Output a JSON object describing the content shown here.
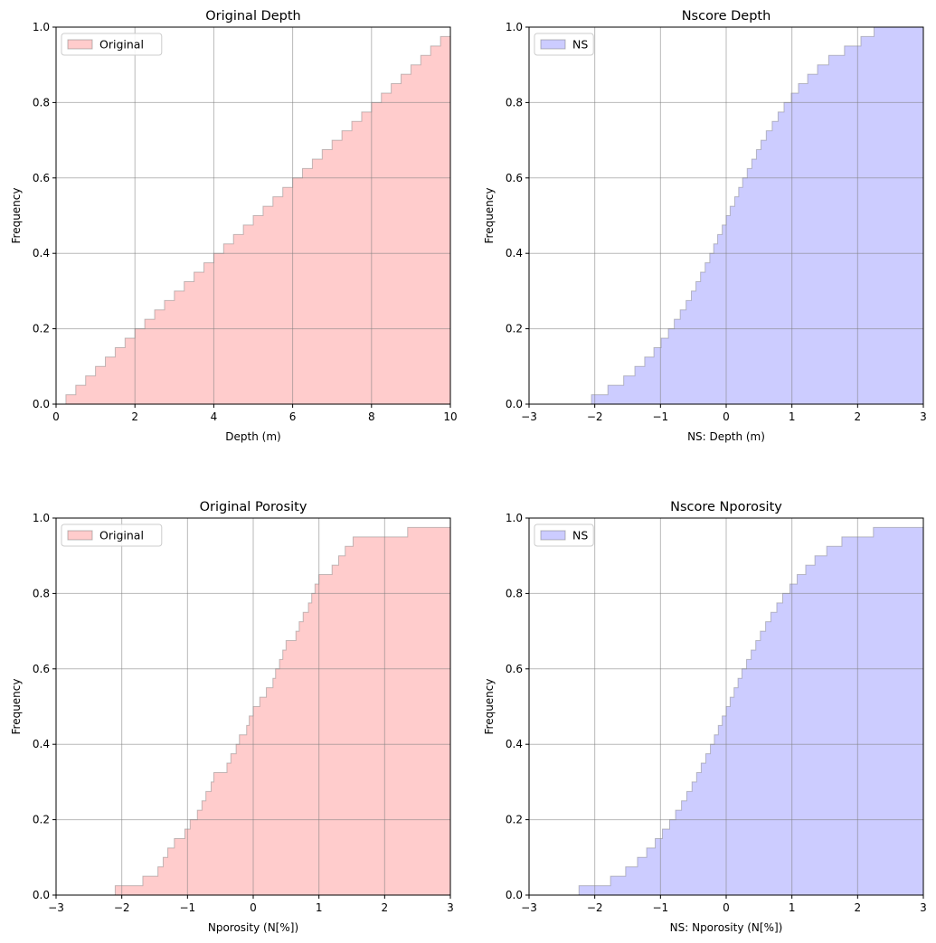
{
  "chart_data": [
    {
      "type": "area",
      "title": "Original Depth",
      "xlabel": "Depth (m)",
      "ylabel": "Frequency",
      "xlim": [
        0,
        10
      ],
      "ylim": [
        0,
        1
      ],
      "xticks": [
        0,
        2,
        4,
        6,
        8,
        10
      ],
      "yticks": [
        0.0,
        0.2,
        0.4,
        0.6,
        0.8,
        1.0
      ],
      "xtick_labels": [
        "0",
        "2",
        "4",
        "6",
        "8",
        "10"
      ],
      "ytick_labels": [
        "0.0",
        "0.2",
        "0.4",
        "0.6",
        "0.8",
        "1.0"
      ],
      "grid": true,
      "legend_position": "top-left",
      "series": [
        {
          "name": "Original",
          "color": "#ff9999",
          "x": [
            0.25,
            0.5,
            0.75,
            1.0,
            1.25,
            1.5,
            1.75,
            2.0,
            2.25,
            2.5,
            2.75,
            3.0,
            3.25,
            3.5,
            3.75,
            4.0,
            4.25,
            4.5,
            4.75,
            5.0,
            5.25,
            5.5,
            5.75,
            6.0,
            6.25,
            6.5,
            6.75,
            7.0,
            7.25,
            7.5,
            7.75,
            8.0,
            8.25,
            8.5,
            8.75,
            9.0,
            9.25,
            9.5,
            9.75,
            10.0
          ],
          "y": [
            0.025,
            0.05,
            0.075,
            0.1,
            0.125,
            0.15,
            0.175,
            0.2,
            0.225,
            0.25,
            0.275,
            0.3,
            0.325,
            0.35,
            0.375,
            0.4,
            0.425,
            0.45,
            0.475,
            0.5,
            0.525,
            0.55,
            0.575,
            0.6,
            0.625,
            0.65,
            0.675,
            0.7,
            0.725,
            0.75,
            0.775,
            0.8,
            0.825,
            0.85,
            0.875,
            0.9,
            0.925,
            0.95,
            0.975,
            1.0
          ]
        }
      ]
    },
    {
      "type": "area",
      "title": "Nscore Depth",
      "xlabel": "NS: Depth (m)",
      "ylabel": "Frequency",
      "xlim": [
        -3,
        3
      ],
      "ylim": [
        0,
        1
      ],
      "xticks": [
        -3,
        -2,
        -1,
        0,
        1,
        2,
        3
      ],
      "yticks": [
        0.0,
        0.2,
        0.4,
        0.6,
        0.8,
        1.0
      ],
      "xtick_labels": [
        "−3",
        "−2",
        "−1",
        "0",
        "1",
        "2",
        "3"
      ],
      "ytick_labels": [
        "0.0",
        "0.2",
        "0.4",
        "0.6",
        "0.8",
        "1.0"
      ],
      "grid": true,
      "legend_position": "top-left",
      "series": [
        {
          "name": "NS",
          "color": "#9999ff",
          "x": [
            -2.05,
            -1.8,
            -1.56,
            -1.39,
            -1.24,
            -1.1,
            -0.99,
            -0.88,
            -0.79,
            -0.7,
            -0.61,
            -0.53,
            -0.46,
            -0.39,
            -0.32,
            -0.25,
            -0.19,
            -0.13,
            -0.06,
            0.0,
            0.06,
            0.13,
            0.19,
            0.25,
            0.32,
            0.39,
            0.46,
            0.53,
            0.61,
            0.7,
            0.79,
            0.88,
            0.99,
            1.1,
            1.24,
            1.39,
            1.56,
            1.8,
            2.05,
            2.25
          ],
          "y": [
            0.025,
            0.05,
            0.075,
            0.1,
            0.125,
            0.15,
            0.175,
            0.2,
            0.225,
            0.25,
            0.275,
            0.3,
            0.325,
            0.35,
            0.375,
            0.4,
            0.425,
            0.45,
            0.475,
            0.5,
            0.525,
            0.55,
            0.575,
            0.6,
            0.625,
            0.65,
            0.675,
            0.7,
            0.725,
            0.75,
            0.775,
            0.8,
            0.825,
            0.85,
            0.875,
            0.9,
            0.925,
            0.95,
            0.975,
            1.0
          ]
        }
      ]
    },
    {
      "type": "area",
      "title": "Original Porosity",
      "xlabel": "Nporosity (N[%])",
      "ylabel": "Frequency",
      "xlim": [
        -3,
        3
      ],
      "ylim": [
        0,
        1
      ],
      "xticks": [
        -3,
        -2,
        -1,
        0,
        1,
        2,
        3
      ],
      "yticks": [
        0.0,
        0.2,
        0.4,
        0.6,
        0.8,
        1.0
      ],
      "xtick_labels": [
        "−3",
        "−2",
        "−1",
        "0",
        "1",
        "2",
        "3"
      ],
      "ytick_labels": [
        "0.0",
        "0.2",
        "0.4",
        "0.6",
        "0.8",
        "1.0"
      ],
      "grid": true,
      "legend_position": "top-left",
      "series": [
        {
          "name": "Original",
          "color": "#ff9999",
          "x": [
            -2.1,
            -1.68,
            -1.45,
            -1.37,
            -1.3,
            -1.2,
            -1.04,
            -0.96,
            -0.85,
            -0.78,
            -0.72,
            -0.64,
            -0.6,
            -0.4,
            -0.34,
            -0.26,
            -0.21,
            -0.1,
            -0.06,
            0.0,
            0.1,
            0.2,
            0.3,
            0.34,
            0.4,
            0.45,
            0.5,
            0.65,
            0.7,
            0.76,
            0.84,
            0.89,
            0.94,
            1.0,
            1.2,
            1.3,
            1.4,
            1.52,
            2.35,
            3.0
          ],
          "y": [
            0.025,
            0.05,
            0.075,
            0.1,
            0.125,
            0.15,
            0.175,
            0.2,
            0.225,
            0.25,
            0.275,
            0.3,
            0.325,
            0.35,
            0.375,
            0.4,
            0.425,
            0.45,
            0.475,
            0.5,
            0.525,
            0.55,
            0.575,
            0.6,
            0.625,
            0.65,
            0.675,
            0.7,
            0.725,
            0.75,
            0.775,
            0.8,
            0.825,
            0.85,
            0.875,
            0.9,
            0.925,
            0.95,
            0.975,
            1.0
          ]
        }
      ]
    },
    {
      "type": "area",
      "title": "Nscore Nporosity",
      "xlabel": "NS: Nporosity (N[%])",
      "ylabel": "Frequency",
      "xlim": [
        -3,
        3
      ],
      "ylim": [
        0,
        1
      ],
      "xticks": [
        -3,
        -2,
        -1,
        0,
        1,
        2,
        3
      ],
      "yticks": [
        0.0,
        0.2,
        0.4,
        0.6,
        0.8,
        1.0
      ],
      "xtick_labels": [
        "−3",
        "−2",
        "−1",
        "0",
        "1",
        "2",
        "3"
      ],
      "ytick_labels": [
        "0.0",
        "0.2",
        "0.4",
        "0.6",
        "0.8",
        "1.0"
      ],
      "grid": true,
      "legend_position": "top-left",
      "series": [
        {
          "name": "NS",
          "color": "#9999ff",
          "x": [
            -2.24,
            -1.76,
            -1.53,
            -1.35,
            -1.21,
            -1.08,
            -0.97,
            -0.86,
            -0.77,
            -0.68,
            -0.6,
            -0.52,
            -0.45,
            -0.38,
            -0.31,
            -0.24,
            -0.18,
            -0.12,
            -0.06,
            0.0,
            0.06,
            0.12,
            0.18,
            0.24,
            0.31,
            0.38,
            0.45,
            0.52,
            0.6,
            0.68,
            0.77,
            0.86,
            0.97,
            1.08,
            1.21,
            1.35,
            1.53,
            1.76,
            2.24,
            3.0
          ],
          "y": [
            0.025,
            0.05,
            0.075,
            0.1,
            0.125,
            0.15,
            0.175,
            0.2,
            0.225,
            0.25,
            0.275,
            0.3,
            0.325,
            0.35,
            0.375,
            0.4,
            0.425,
            0.45,
            0.475,
            0.5,
            0.525,
            0.55,
            0.575,
            0.6,
            0.625,
            0.65,
            0.675,
            0.7,
            0.725,
            0.75,
            0.775,
            0.8,
            0.825,
            0.85,
            0.875,
            0.9,
            0.925,
            0.95,
            0.975,
            1.0
          ]
        }
      ]
    }
  ]
}
